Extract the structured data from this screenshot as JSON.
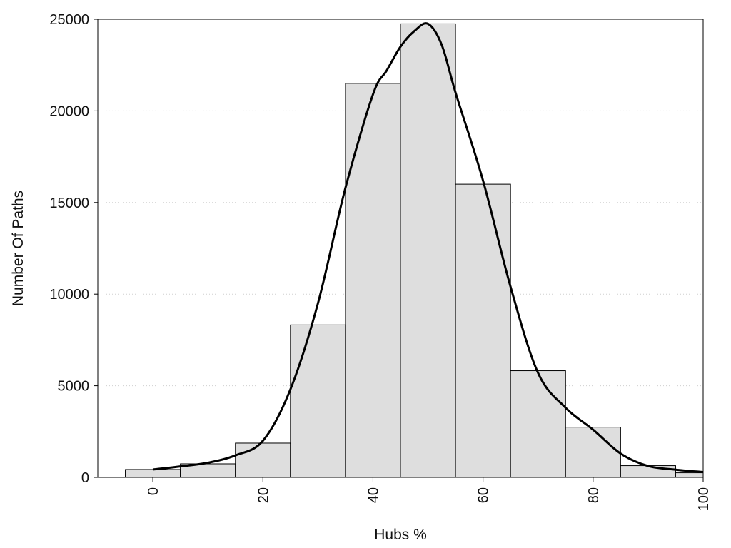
{
  "chart_data": {
    "type": "histogram",
    "xlabel": "Hubs %",
    "ylabel": "Number Of Paths",
    "xlim": [
      -10,
      100
    ],
    "ylim": [
      0,
      25000
    ],
    "x_ticks": [
      0,
      20,
      40,
      60,
      80,
      100
    ],
    "y_ticks": [
      0,
      5000,
      10000,
      15000,
      20000,
      25000
    ],
    "grid": "horizontal-dotted",
    "bin_width": 10,
    "bins": [
      {
        "center": 0,
        "count": 430
      },
      {
        "center": 10,
        "count": 740
      },
      {
        "center": 20,
        "count": 1870
      },
      {
        "center": 30,
        "count": 8320
      },
      {
        "center": 40,
        "count": 21500
      },
      {
        "center": 50,
        "count": 24750
      },
      {
        "center": 60,
        "count": 16000
      },
      {
        "center": 70,
        "count": 5820
      },
      {
        "center": 80,
        "count": 2740
      },
      {
        "center": 90,
        "count": 640
      },
      {
        "center": 100,
        "count": 250
      }
    ],
    "density_curve": {
      "x": [
        0,
        5,
        10,
        15,
        20,
        25,
        30,
        35,
        40,
        42.5,
        45,
        47.5,
        50,
        52.5,
        55,
        60,
        65,
        70,
        75,
        80,
        85,
        90,
        95,
        100
      ],
      "y": [
        430,
        600,
        800,
        1200,
        2000,
        4800,
        9500,
        15800,
        20900,
        22200,
        23500,
        24350,
        24750,
        23600,
        21000,
        16200,
        10400,
        5700,
        3800,
        2600,
        1300,
        620,
        420,
        290
      ]
    },
    "colors": {
      "bar_fill": "#dedede",
      "bar_stroke": "#000000",
      "curve": "#000000",
      "grid": "#cfcfcf"
    }
  }
}
